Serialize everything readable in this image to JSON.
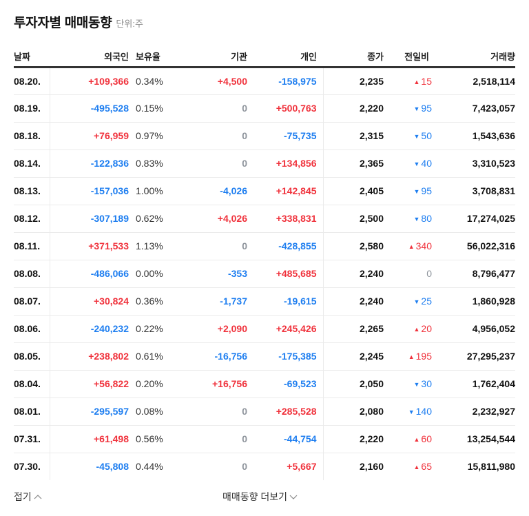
{
  "header": {
    "title": "투자자별 매매동향",
    "unit": "단위:주"
  },
  "colors": {
    "up": "#f0323c",
    "down": "#1e7ef0",
    "zero": "#8e949c"
  },
  "table": {
    "columns": [
      "날짜",
      "외국인",
      "보유율",
      "기관",
      "개인",
      "종가",
      "전일비",
      "거래량"
    ],
    "rows": [
      {
        "date": "08.20.",
        "foreign": "+109,366",
        "foreign_dir": "up",
        "holding": "0.34%",
        "inst": "+4,500",
        "inst_dir": "up",
        "indiv": "-158,975",
        "indiv_dir": "down",
        "close": "2,235",
        "change": "15",
        "change_dir": "up",
        "volume": "2,518,114"
      },
      {
        "date": "08.19.",
        "foreign": "-495,528",
        "foreign_dir": "down",
        "holding": "0.15%",
        "inst": "0",
        "inst_dir": "zero",
        "indiv": "+500,763",
        "indiv_dir": "up",
        "close": "2,220",
        "change": "95",
        "change_dir": "down",
        "volume": "7,423,057"
      },
      {
        "date": "08.18.",
        "foreign": "+76,959",
        "foreign_dir": "up",
        "holding": "0.97%",
        "inst": "0",
        "inst_dir": "zero",
        "indiv": "-75,735",
        "indiv_dir": "down",
        "close": "2,315",
        "change": "50",
        "change_dir": "down",
        "volume": "1,543,636"
      },
      {
        "date": "08.14.",
        "foreign": "-122,836",
        "foreign_dir": "down",
        "holding": "0.83%",
        "inst": "0",
        "inst_dir": "zero",
        "indiv": "+134,856",
        "indiv_dir": "up",
        "close": "2,365",
        "change": "40",
        "change_dir": "down",
        "volume": "3,310,523"
      },
      {
        "date": "08.13.",
        "foreign": "-157,036",
        "foreign_dir": "down",
        "holding": "1.00%",
        "inst": "-4,026",
        "inst_dir": "down",
        "indiv": "+142,845",
        "indiv_dir": "up",
        "close": "2,405",
        "change": "95",
        "change_dir": "down",
        "volume": "3,708,831"
      },
      {
        "date": "08.12.",
        "foreign": "-307,189",
        "foreign_dir": "down",
        "holding": "0.62%",
        "inst": "+4,026",
        "inst_dir": "up",
        "indiv": "+338,831",
        "indiv_dir": "up",
        "close": "2,500",
        "change": "80",
        "change_dir": "down",
        "volume": "17,274,025"
      },
      {
        "date": "08.11.",
        "foreign": "+371,533",
        "foreign_dir": "up",
        "holding": "1.13%",
        "inst": "0",
        "inst_dir": "zero",
        "indiv": "-428,855",
        "indiv_dir": "down",
        "close": "2,580",
        "change": "340",
        "change_dir": "up",
        "volume": "56,022,316"
      },
      {
        "date": "08.08.",
        "foreign": "-486,066",
        "foreign_dir": "down",
        "holding": "0.00%",
        "inst": "-353",
        "inst_dir": "down",
        "indiv": "+485,685",
        "indiv_dir": "up",
        "close": "2,240",
        "change": "0",
        "change_dir": "zero",
        "volume": "8,796,477"
      },
      {
        "date": "08.07.",
        "foreign": "+30,824",
        "foreign_dir": "up",
        "holding": "0.36%",
        "inst": "-1,737",
        "inst_dir": "down",
        "indiv": "-19,615",
        "indiv_dir": "down",
        "close": "2,240",
        "change": "25",
        "change_dir": "down",
        "volume": "1,860,928"
      },
      {
        "date": "08.06.",
        "foreign": "-240,232",
        "foreign_dir": "down",
        "holding": "0.22%",
        "inst": "+2,090",
        "inst_dir": "up",
        "indiv": "+245,426",
        "indiv_dir": "up",
        "close": "2,265",
        "change": "20",
        "change_dir": "up",
        "volume": "4,956,052"
      },
      {
        "date": "08.05.",
        "foreign": "+238,802",
        "foreign_dir": "up",
        "holding": "0.61%",
        "inst": "-16,756",
        "inst_dir": "down",
        "indiv": "-175,385",
        "indiv_dir": "down",
        "close": "2,245",
        "change": "195",
        "change_dir": "up",
        "volume": "27,295,237"
      },
      {
        "date": "08.04.",
        "foreign": "+56,822",
        "foreign_dir": "up",
        "holding": "0.20%",
        "inst": "+16,756",
        "inst_dir": "up",
        "indiv": "-69,523",
        "indiv_dir": "down",
        "close": "2,050",
        "change": "30",
        "change_dir": "down",
        "volume": "1,762,404"
      },
      {
        "date": "08.01.",
        "foreign": "-295,597",
        "foreign_dir": "down",
        "holding": "0.08%",
        "inst": "0",
        "inst_dir": "zero",
        "indiv": "+285,528",
        "indiv_dir": "up",
        "close": "2,080",
        "change": "140",
        "change_dir": "down",
        "volume": "2,232,927"
      },
      {
        "date": "07.31.",
        "foreign": "+61,498",
        "foreign_dir": "up",
        "holding": "0.56%",
        "inst": "0",
        "inst_dir": "zero",
        "indiv": "-44,754",
        "indiv_dir": "down",
        "close": "2,220",
        "change": "60",
        "change_dir": "up",
        "volume": "13,254,544"
      },
      {
        "date": "07.30.",
        "foreign": "-45,808",
        "foreign_dir": "down",
        "holding": "0.44%",
        "inst": "0",
        "inst_dir": "zero",
        "indiv": "+5,667",
        "indiv_dir": "up",
        "close": "2,160",
        "change": "65",
        "change_dir": "up",
        "volume": "15,811,980"
      }
    ]
  },
  "footer": {
    "fold_label": "접기",
    "fold_icon": "chevron-up-icon",
    "more_label": "매매동향 더보기",
    "more_icon": "chevron-down-icon"
  }
}
